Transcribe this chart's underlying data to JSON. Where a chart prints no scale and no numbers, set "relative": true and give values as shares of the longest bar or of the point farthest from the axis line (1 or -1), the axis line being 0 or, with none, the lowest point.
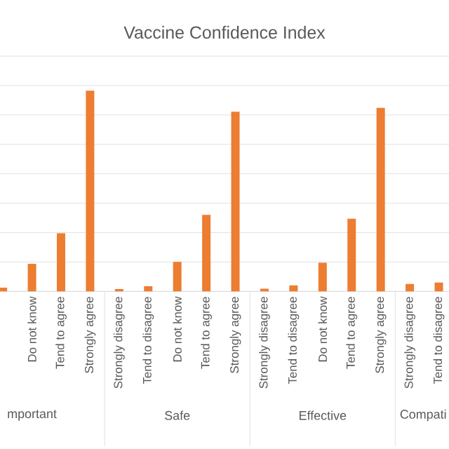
{
  "chart_data": {
    "type": "bar",
    "title": "Vaccine Confidence Index",
    "relative": true,
    "grid": "y",
    "color": "#ed7d31",
    "categories": [
      null,
      "Do not know",
      "Tend to agree",
      "Strongly agree",
      "Strongly disagree",
      "Tend to disagree",
      "Do not know",
      "Tend to agree",
      "Strongly agree",
      "Strongly disagree",
      "Tend to disagree",
      "Do not know",
      "Tend to agree",
      "Strongly agree",
      "Strongly disagree",
      "Tend to disagree"
    ],
    "values": [
      0.019,
      0.138,
      0.29,
      1,
      0.012,
      0.026,
      0.147,
      0.381,
      0.895,
      0.014,
      0.03,
      0.143,
      0.362,
      0.914,
      0.037,
      0.044
    ],
    "annotations": [
      "mportant",
      "Safe",
      "Effective",
      "Compati"
    ]
  }
}
